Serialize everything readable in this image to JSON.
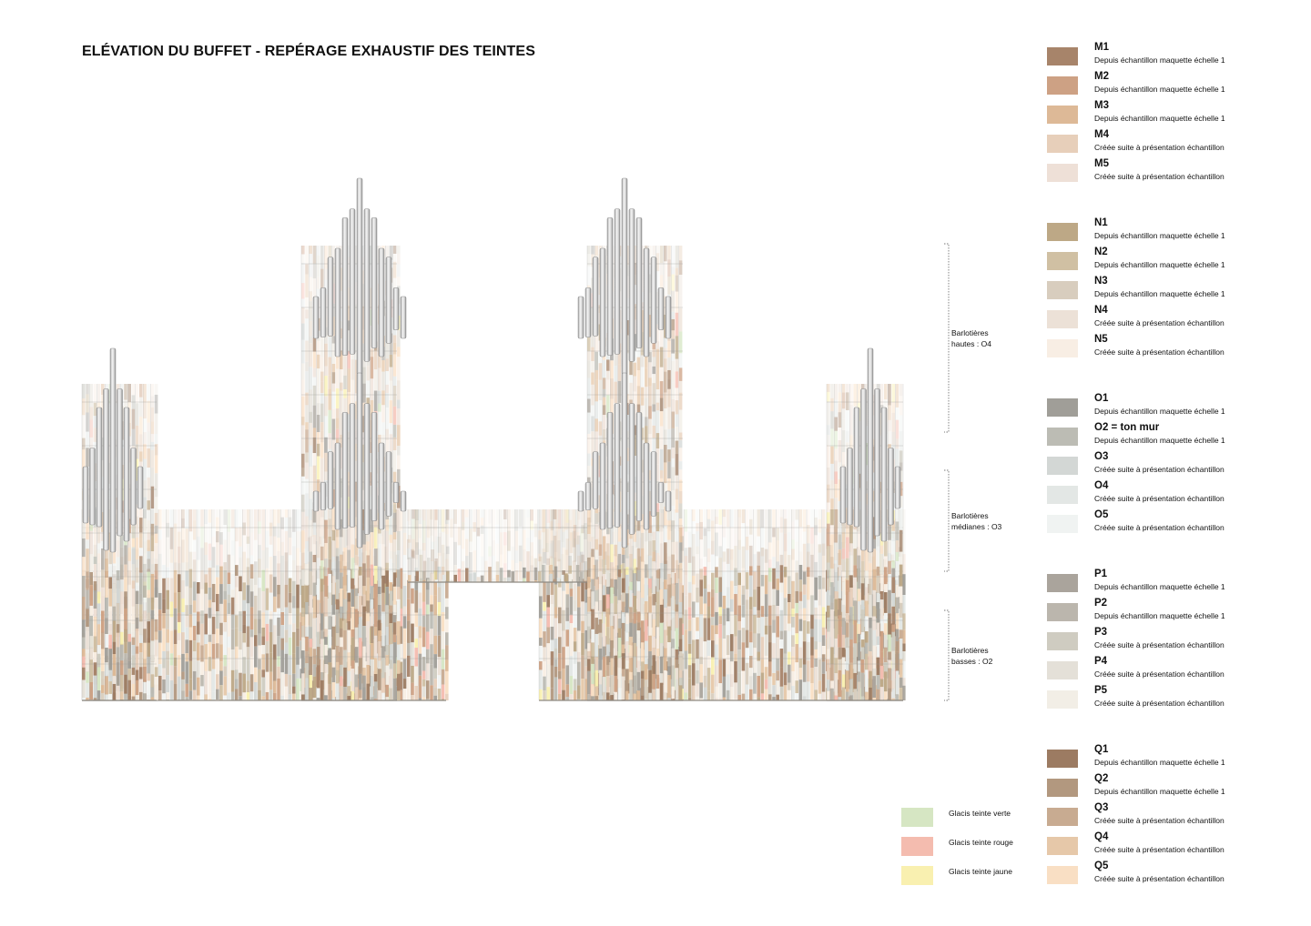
{
  "title": "ELÉVATION DU BUFFET - REPÉRAGE EXHAUSTIF DES TEINTES",
  "zones": [
    {
      "line1": "Barlotières",
      "line2": "hautes : O4"
    },
    {
      "line1": "Barlotières",
      "line2": "médianes : O3"
    },
    {
      "line1": "Barlotières",
      "line2": "basses : O2"
    }
  ],
  "glazes": [
    {
      "label": "Glacis teinte verte",
      "color": "#d6e6c3"
    },
    {
      "label": "Glacis teinte rouge",
      "color": "#f4bcaf"
    },
    {
      "label": "Glacis teinte jaune",
      "color": "#f9f0b0"
    }
  ],
  "swatch_groups": [
    {
      "items": [
        {
          "code": "M1",
          "desc": "Depuis échantillon maquette échelle 1",
          "color": "#a7846a"
        },
        {
          "code": "M2",
          "desc": "Depuis échantillon maquette échelle 1",
          "color": "#cda184"
        },
        {
          "code": "M3",
          "desc": "Depuis échantillon maquette échelle 1",
          "color": "#ddb997"
        },
        {
          "code": "M4",
          "desc": "Créée suite à présentation échantillon",
          "color": "#e7cfba"
        },
        {
          "code": "M5",
          "desc": "Créée suite à présentation échantillon",
          "color": "#eee0d7"
        }
      ]
    },
    {
      "items": [
        {
          "code": "N1",
          "desc": "Depuis échantillon maquette échelle 1",
          "color": "#bda886"
        },
        {
          "code": "N2",
          "desc": "Depuis échantillon maquette échelle 1",
          "color": "#d0c0a3"
        },
        {
          "code": "N3",
          "desc": "Depuis échantillon maquette échelle 1",
          "color": "#d8cdbe"
        },
        {
          "code": "N4",
          "desc": "Créée suite à présentation échantillon",
          "color": "#ece1d7"
        },
        {
          "code": "N5",
          "desc": "Créée suite à présentation échantillon",
          "color": "#f8eee4"
        }
      ]
    },
    {
      "items": [
        {
          "code": "O1",
          "desc": "Depuis échantillon maquette échelle 1",
          "color": "#a09e98"
        },
        {
          "code": "O2 = ton mur",
          "desc": "Depuis échantillon maquette échelle 1",
          "color": "#bcbcb4"
        },
        {
          "code": "O3",
          "desc": "Créée suite à présentation échantillon",
          "color": "#d3d7d5"
        },
        {
          "code": "O4",
          "desc": "Créée suite à présentation échantillon",
          "color": "#e3e7e5"
        },
        {
          "code": "O5",
          "desc": "Créée suite à présentation échantillon",
          "color": "#f0f3f2"
        }
      ]
    },
    {
      "items": [
        {
          "code": "P1",
          "desc": "Depuis échantillon maquette échelle 1",
          "color": "#aaa49c"
        },
        {
          "code": "P2",
          "desc": "Depuis échantillon maquette échelle 1",
          "color": "#bbb6ad"
        },
        {
          "code": "P3",
          "desc": "Créée suite à présentation échantillon",
          "color": "#cfccc1"
        },
        {
          "code": "P4",
          "desc": "Créée suite à présentation échantillon",
          "color": "#e4e0d8"
        },
        {
          "code": "P5",
          "desc": "Créée suite à présentation échantillon",
          "color": "#f2eee6"
        }
      ]
    },
    {
      "items": [
        {
          "code": "Q1",
          "desc": "Depuis échantillon maquette échelle 1",
          "color": "#9c7b62"
        },
        {
          "code": "Q2",
          "desc": "Depuis échantillon maquette échelle 1",
          "color": "#b2987f"
        },
        {
          "code": "Q3",
          "desc": "Créée suite à présentation échantillon",
          "color": "#c8ab91"
        },
        {
          "code": "Q4",
          "desc": "Créée suite à présentation échantillon",
          "color": "#e6c8a9"
        },
        {
          "code": "Q5",
          "desc": "Créée suite à présentation échantillon",
          "color": "#f9dfc4"
        }
      ]
    }
  ]
}
